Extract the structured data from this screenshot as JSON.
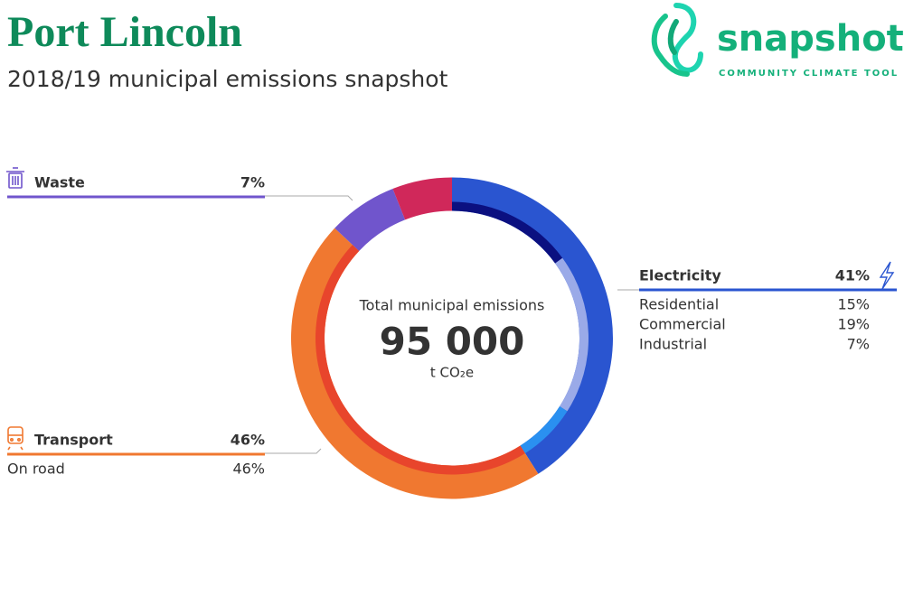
{
  "header": {
    "title": "Port Lincoln",
    "subtitle": "2018/19 municipal emissions snapshot"
  },
  "logo": {
    "name": "snapshot",
    "tagline": "COMMUNITY CLIMATE TOOL"
  },
  "chart_data": {
    "type": "donut",
    "center_label": "Total municipal emissions",
    "total": 95000,
    "total_label": "95 000",
    "unit": "t CO₂e",
    "categories": [
      "Electricity",
      "Transport",
      "Waste",
      null
    ],
    "values": [
      41,
      46,
      7,
      6
    ],
    "value_labels": [
      "41%",
      "46%",
      "7%",
      null
    ],
    "colors": [
      "#2a55d0",
      "#f07830",
      "#7055cc",
      "#d0285a"
    ],
    "inner": {
      "categories": [
        "Residential",
        "Commercial",
        "Industrial",
        "On road"
      ],
      "values": [
        15,
        19,
        7,
        46
      ],
      "value_labels": [
        "15%",
        "19%",
        "7%",
        "46%"
      ],
      "colors": [
        "#0b1080",
        "#9aaae8",
        "#2a90f0",
        "#e8452c"
      ]
    }
  }
}
